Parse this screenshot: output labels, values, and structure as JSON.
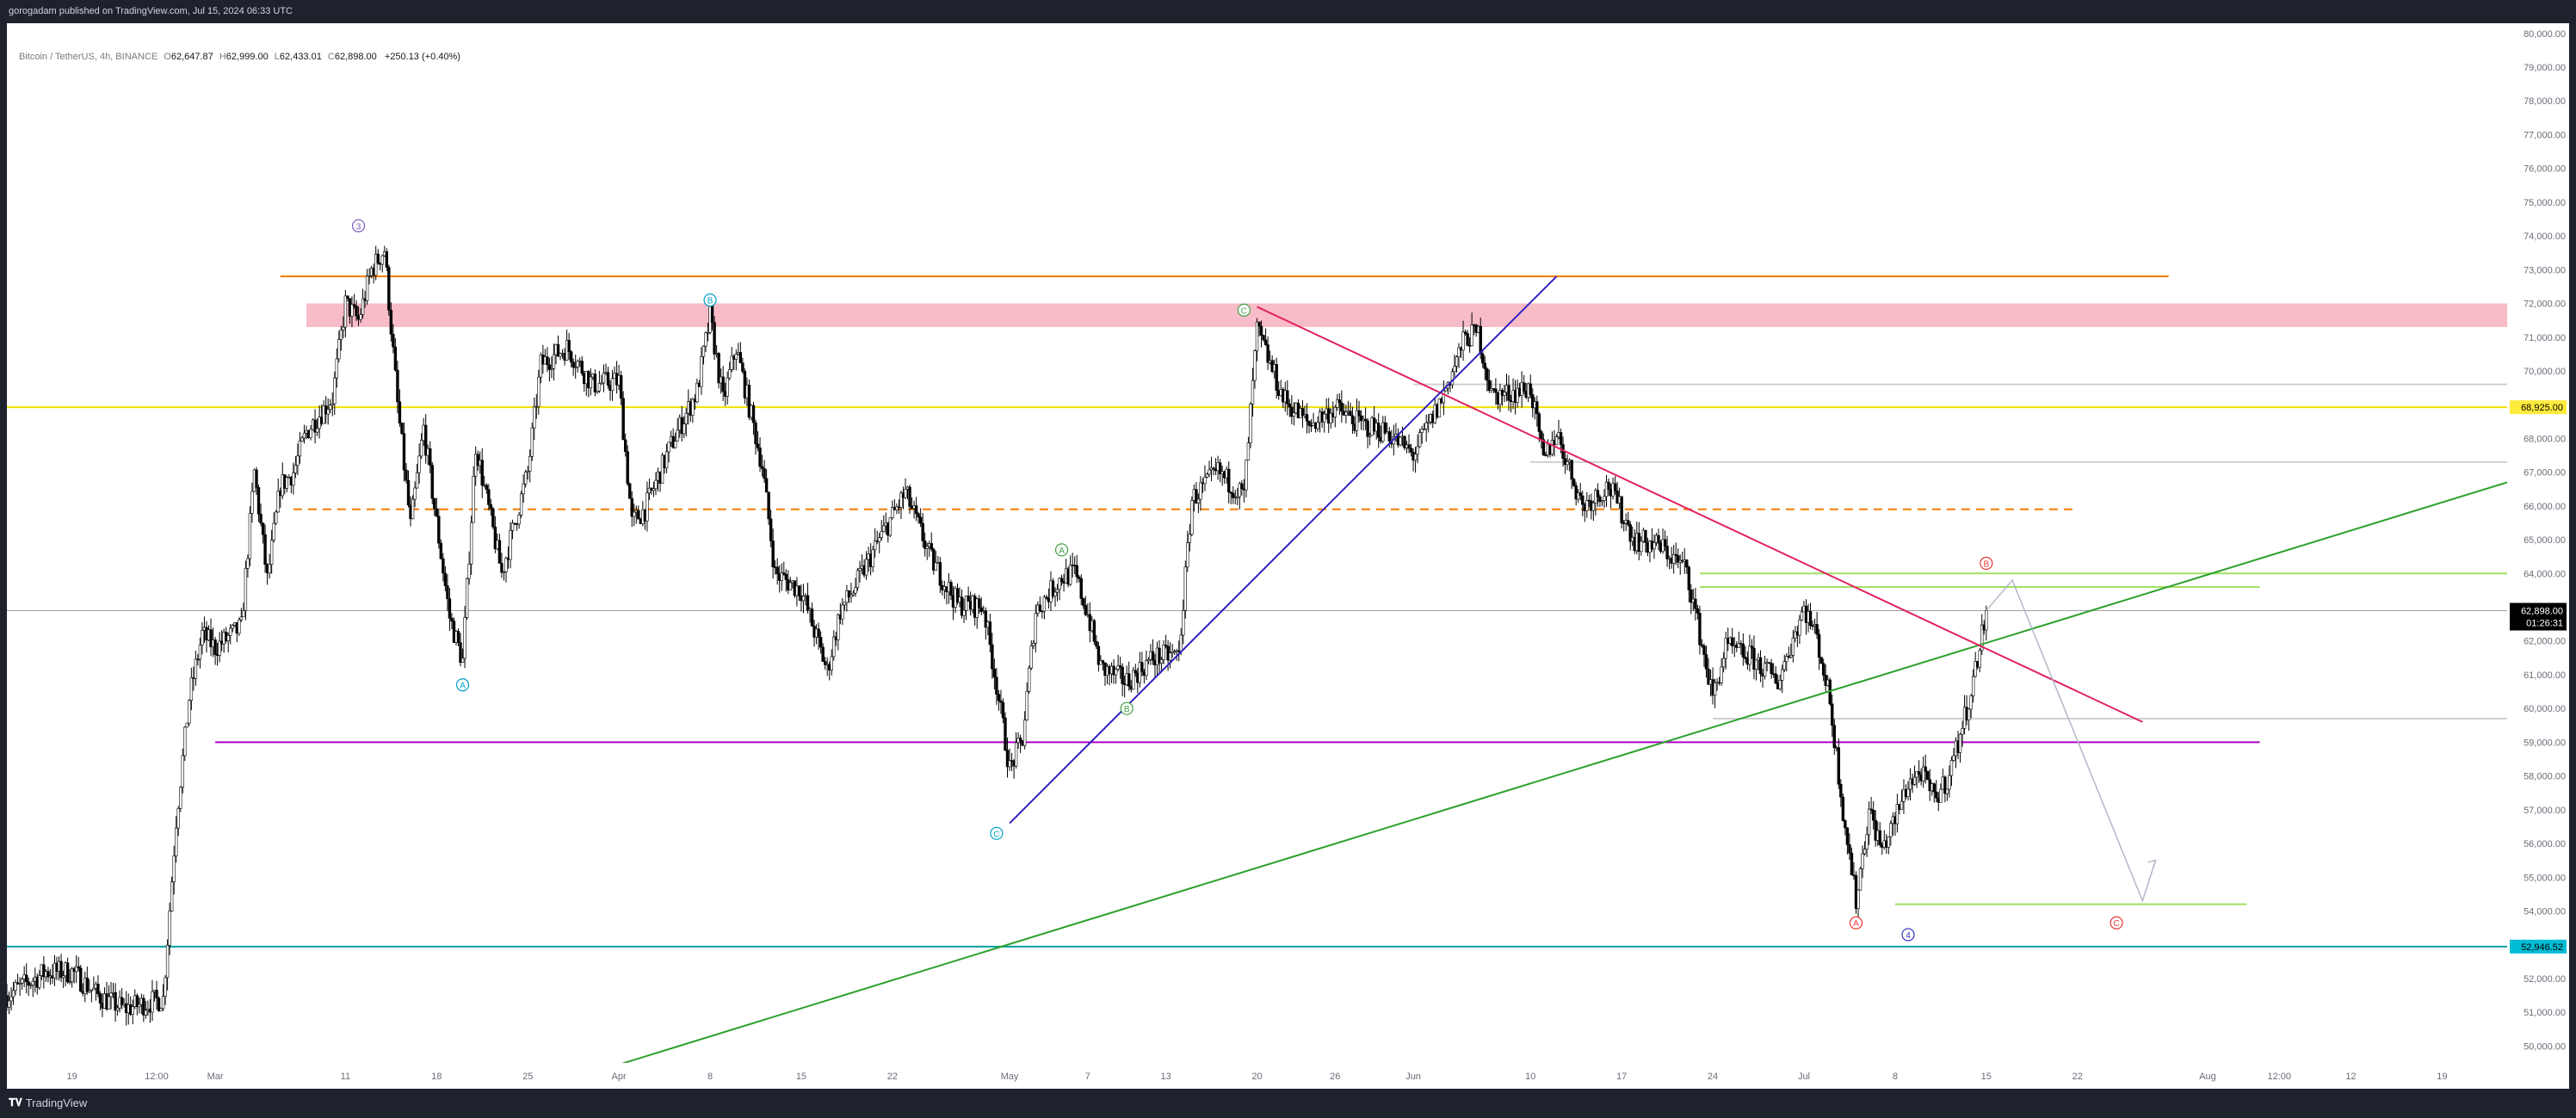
{
  "header": {
    "published_text": "gorogadam published on TradingView.com, Jul 15, 2024 06:33 UTC"
  },
  "footer": {
    "logo_text": "TradingView"
  },
  "legend": {
    "symbol": "Bitcoin / TetherUS, 4h, BINANCE",
    "open_label": "O",
    "open": "62,647.87",
    "high_label": "H",
    "high": "62,999.00",
    "low_label": "L",
    "low": "62,433.01",
    "close_label": "C",
    "close": "62,898.00",
    "change": "+250.13 (+0.40%)"
  },
  "colors": {
    "up": "#ffffff",
    "down": "#000000",
    "orange": "#f57c00",
    "pink_zone": "#f8bbc8",
    "yellow": "#f0e000",
    "purple": "#b000c8",
    "teal": "#00a0a0",
    "green": "#2ca02c",
    "lime": "#a0e060",
    "crimson": "#e0245e",
    "navy": "#3020c0",
    "price_tag": "#000000",
    "teal_tag": "#00bcd4",
    "yellow_tag": "#ffeb3b"
  },
  "chart_data": {
    "type": "candlestick",
    "symbol": "BTCUSDT",
    "timeframe": "4h",
    "exchange": "BINANCE",
    "ylim": [
      49500,
      80300
    ],
    "y_ticks": [
      "80,000.00",
      "79,000.00",
      "78,000.00",
      "77,000.00",
      "76,000.00",
      "75,000.00",
      "74,000.00",
      "73,000.00",
      "72,000.00",
      "71,000.00",
      "70,000.00",
      "69,000.00",
      "68,000.00",
      "67,000.00",
      "66,000.00",
      "65,000.00",
      "64,000.00",
      "63,000.00",
      "62,000.00",
      "61,000.00",
      "60,000.00",
      "59,000.00",
      "58,000.00",
      "57,000.00",
      "56,000.00",
      "55,000.00",
      "54,000.00",
      "53,000.00",
      "52,000.00",
      "51,000.00",
      "50,000.00"
    ],
    "x_ticks": [
      {
        "label": "19",
        "date": "2024-02-19"
      },
      {
        "label": "12:00",
        "date": "2024-02-25T12:00"
      },
      {
        "label": "Mar",
        "date": "2024-03-01"
      },
      {
        "label": "11",
        "date": "2024-03-11"
      },
      {
        "label": "18",
        "date": "2024-03-18"
      },
      {
        "label": "25",
        "date": "2024-03-25"
      },
      {
        "label": "Apr",
        "date": "2024-04-01"
      },
      {
        "label": "8",
        "date": "2024-04-08"
      },
      {
        "label": "15",
        "date": "2024-04-15"
      },
      {
        "label": "22",
        "date": "2024-04-22"
      },
      {
        "label": "May",
        "date": "2024-05-01"
      },
      {
        "label": "7",
        "date": "2024-05-07"
      },
      {
        "label": "13",
        "date": "2024-05-13"
      },
      {
        "label": "20",
        "date": "2024-05-20"
      },
      {
        "label": "26",
        "date": "2024-05-26"
      },
      {
        "label": "Jun",
        "date": "2024-06-01"
      },
      {
        "label": "10",
        "date": "2024-06-10"
      },
      {
        "label": "17",
        "date": "2024-06-17"
      },
      {
        "label": "24",
        "date": "2024-06-24"
      },
      {
        "label": "Jul",
        "date": "2024-07-01"
      },
      {
        "label": "8",
        "date": "2024-07-08"
      },
      {
        "label": "15",
        "date": "2024-07-15"
      },
      {
        "label": "22",
        "date": "2024-07-22"
      },
      {
        "label": "Aug",
        "date": "2024-08-01"
      },
      {
        "label": "12:00",
        "date": "2024-08-06T12:00"
      },
      {
        "label": "12",
        "date": "2024-08-12"
      },
      {
        "label": "19",
        "date": "2024-08-19"
      }
    ],
    "price_path": [
      [
        "2024-02-14",
        51500
      ],
      [
        "2024-02-17",
        52200
      ],
      [
        "2024-02-19",
        52200
      ],
      [
        "2024-02-21",
        51500
      ],
      [
        "2024-02-23",
        51100
      ],
      [
        "2024-02-26",
        51400
      ],
      [
        "2024-02-27",
        56700
      ],
      [
        "2024-02-28",
        60300
      ],
      [
        "2024-02-29",
        62200
      ],
      [
        "2024-03-01",
        61800
      ],
      [
        "2024-03-03",
        62400
      ],
      [
        "2024-03-04",
        67000
      ],
      [
        "2024-03-05",
        63800
      ],
      [
        "2024-03-06",
        66600
      ],
      [
        "2024-03-07",
        67000
      ],
      [
        "2024-03-08",
        68200
      ],
      [
        "2024-03-10",
        69200
      ],
      [
        "2024-03-11",
        72000
      ],
      [
        "2024-03-12",
        71500
      ],
      [
        "2024-03-13",
        73000
      ],
      [
        "2024-03-14",
        73600
      ],
      [
        "2024-03-15",
        69000
      ],
      [
        "2024-03-16",
        65400
      ],
      [
        "2024-03-17",
        68300
      ],
      [
        "2024-03-19",
        62700
      ],
      [
        "2024-03-20",
        61400
      ],
      [
        "2024-03-21",
        67800
      ],
      [
        "2024-03-23",
        64000
      ],
      [
        "2024-03-25",
        67000
      ],
      [
        "2024-03-26",
        70200
      ],
      [
        "2024-03-28",
        70700
      ],
      [
        "2024-03-30",
        69600
      ],
      [
        "2024-04-01",
        69700
      ],
      [
        "2024-04-02",
        65500
      ],
      [
        "2024-04-03",
        65900
      ],
      [
        "2024-04-05",
        67800
      ],
      [
        "2024-04-07",
        69400
      ],
      [
        "2024-04-08",
        71600
      ],
      [
        "2024-04-09",
        69100
      ],
      [
        "2024-04-10",
        70700
      ],
      [
        "2024-04-12",
        67200
      ],
      [
        "2024-04-13",
        64000
      ],
      [
        "2024-04-15",
        63500
      ],
      [
        "2024-04-17",
        61100
      ],
      [
        "2024-04-18",
        62900
      ],
      [
        "2024-04-19",
        63500
      ],
      [
        "2024-04-21",
        65000
      ],
      [
        "2024-04-23",
        66400
      ],
      [
        "2024-04-25",
        64400
      ],
      [
        "2024-04-27",
        63100
      ],
      [
        "2024-04-29",
        63000
      ],
      [
        "2024-04-30",
        60700
      ],
      [
        "2024-05-01",
        58200
      ],
      [
        "2024-05-02",
        59100
      ],
      [
        "2024-05-03",
        62900
      ],
      [
        "2024-05-05",
        63900
      ],
      [
        "2024-05-06",
        64000
      ],
      [
        "2024-05-07",
        62800
      ],
      [
        "2024-05-08",
        61200
      ],
      [
        "2024-05-10",
        60800
      ],
      [
        "2024-05-12",
        61500
      ],
      [
        "2024-05-14",
        61600
      ],
      [
        "2024-05-15",
        66200
      ],
      [
        "2024-05-17",
        67000
      ],
      [
        "2024-05-19",
        66300
      ],
      [
        "2024-05-20",
        71200
      ],
      [
        "2024-05-21",
        70200
      ],
      [
        "2024-05-22",
        69200
      ],
      [
        "2024-05-24",
        68400
      ],
      [
        "2024-05-26",
        68900
      ],
      [
        "2024-05-28",
        68400
      ],
      [
        "2024-05-30",
        68200
      ],
      [
        "2024-06-01",
        67500
      ],
      [
        "2024-06-03",
        69000
      ],
      [
        "2024-06-05",
        71000
      ],
      [
        "2024-06-06",
        71100
      ],
      [
        "2024-06-07",
        69300
      ],
      [
        "2024-06-08",
        69300
      ],
      [
        "2024-06-10",
        69500
      ],
      [
        "2024-06-11",
        67300
      ],
      [
        "2024-06-12",
        68200
      ],
      [
        "2024-06-14",
        66000
      ],
      [
        "2024-06-16",
        66600
      ],
      [
        "2024-06-18",
        65000
      ],
      [
        "2024-06-20",
        64800
      ],
      [
        "2024-06-22",
        64100
      ],
      [
        "2024-06-24",
        60300
      ],
      [
        "2024-06-25",
        61800
      ],
      [
        "2024-06-27",
        61500
      ],
      [
        "2024-06-29",
        60800
      ],
      [
        "2024-07-01",
        63000
      ],
      [
        "2024-07-02",
        62100
      ],
      [
        "2024-07-03",
        60200
      ],
      [
        "2024-07-04",
        57000
      ],
      [
        "2024-07-05",
        54300
      ],
      [
        "2024-07-06",
        57000
      ],
      [
        "2024-07-07",
        55800
      ],
      [
        "2024-07-08",
        56700
      ],
      [
        "2024-07-09",
        57800
      ],
      [
        "2024-07-10",
        58100
      ],
      [
        "2024-07-11",
        57300
      ],
      [
        "2024-07-12",
        57900
      ],
      [
        "2024-07-13",
        59200
      ],
      [
        "2024-07-14",
        60800
      ],
      [
        "2024-07-15",
        62898
      ]
    ],
    "last_price": 62898.0,
    "last_price_label": "62,898.00",
    "countdown_label": "01:26:31",
    "horizontal_lines": [
      {
        "name": "orange-top-line",
        "y": 72800,
        "from": "2024-03-06",
        "to": "2024-07-29",
        "style": "solid",
        "color": "#f57c00"
      },
      {
        "name": "orange-dashed-line",
        "y": 65900,
        "from": "2024-03-07",
        "to": "2024-07-22",
        "style": "dashed",
        "color": "#f57c00"
      },
      {
        "name": "yellow-line",
        "y": 68925,
        "from": "2024-02-14",
        "to": "2024-08-24",
        "style": "solid",
        "color": "#f0e000"
      },
      {
        "name": "purple-support-line",
        "y": 59000,
        "from": "2024-03-01",
        "to": "2024-08-05",
        "style": "solid",
        "color": "#b000c8"
      },
      {
        "name": "teal-support-line",
        "y": 52946.52,
        "from": "2024-02-14",
        "to": "2024-08-24",
        "style": "solid",
        "color": "#00a0a0"
      },
      {
        "name": "lime-line-upper",
        "y": 64000,
        "from": "2024-06-23",
        "to": "2024-08-24",
        "style": "solid",
        "color": "#a0e060"
      },
      {
        "name": "lime-line-lower",
        "y": 63600,
        "from": "2024-06-23",
        "to": "2024-08-05",
        "style": "solid",
        "color": "#a0e060"
      },
      {
        "name": "lime-bottom-line",
        "y": 54200,
        "from": "2024-07-08",
        "to": "2024-08-04",
        "style": "solid",
        "color": "#a0e060"
      },
      {
        "name": "grey-line-upper",
        "y": 69600,
        "from": "2024-06-01",
        "to": "2024-08-24",
        "style": "solid",
        "color": "#d0d0d0"
      },
      {
        "name": "grey-line-mid",
        "y": 67300,
        "from": "2024-06-10",
        "to": "2024-08-24",
        "style": "solid",
        "color": "#d0d0d0"
      },
      {
        "name": "grey-line-lower",
        "y": 59700,
        "from": "2024-06-24",
        "to": "2024-08-24",
        "style": "solid",
        "color": "#d0d0d0"
      },
      {
        "name": "last-price-line",
        "y": 62898,
        "from": "2024-02-14",
        "to": "2024-08-24",
        "style": "solid",
        "color": "#a0a0a0"
      }
    ],
    "zones": [
      {
        "name": "pink-resistance-zone",
        "y1": 71300,
        "y2": 72000,
        "from": "2024-03-08",
        "to": "2024-08-24",
        "color": "#f8bbc8"
      }
    ],
    "trend_lines": [
      {
        "name": "green-rising-trendline",
        "from": [
          "2024-03-24",
          48500
        ],
        "to": [
          "2024-08-24",
          66700
        ],
        "color": "#2ca02c"
      },
      {
        "name": "crimson-falling-trendline",
        "from": [
          "2024-05-20",
          71900
        ],
        "to": [
          "2024-07-27",
          59600
        ],
        "color": "#e0245e"
      },
      {
        "name": "navy-rising-trendline",
        "from": [
          "2024-05-01",
          56600
        ],
        "to": [
          "2024-06-12",
          72800
        ],
        "color": "#3020c0"
      }
    ],
    "projection": [
      [
        "2024-07-15",
        62900
      ],
      [
        "2024-07-17",
        63800
      ],
      [
        "2024-07-27",
        54300
      ],
      [
        "2024-07-28",
        55500
      ]
    ],
    "wave_labels": [
      {
        "text": "3",
        "x": "2024-03-12",
        "y": 74300,
        "color": "#7e57c2"
      },
      {
        "text": "B",
        "x": "2024-04-08",
        "y": 72100,
        "color": "#00a0c8"
      },
      {
        "text": "A",
        "x": "2024-03-20",
        "y": 60700,
        "color": "#00a0c8"
      },
      {
        "text": "C",
        "x": "2024-04-30",
        "y": 56300,
        "color": "#00a0c8"
      },
      {
        "text": "C",
        "x": "2024-05-19",
        "y": 71800,
        "color": "#43a047"
      },
      {
        "text": "A",
        "x": "2024-05-05",
        "y": 64700,
        "color": "#43a047"
      },
      {
        "text": "B",
        "x": "2024-05-10",
        "y": 60000,
        "color": "#43a047"
      },
      {
        "text": "B",
        "x": "2024-07-15",
        "y": 64300,
        "color": "#e53935"
      },
      {
        "text": "A",
        "x": "2024-07-05",
        "y": 53650,
        "color": "#e53935"
      },
      {
        "text": "C",
        "x": "2024-07-25",
        "y": 53650,
        "color": "#e53935"
      },
      {
        "text": "4",
        "x": "2024-07-09",
        "y": 53300,
        "color": "#3030c0"
      }
    ],
    "axis_tags": [
      {
        "name": "yellow-price-tag",
        "text": "68,925.00",
        "y": 68925,
        "bg": "#ffeb3b",
        "fg": "#000000"
      },
      {
        "name": "teal-price-tag",
        "text": "52,946.52",
        "y": 52946.52,
        "bg": "#00bcd4",
        "fg": "#000000"
      }
    ],
    "x_range": [
      "2024-02-14",
      "2024-08-24"
    ],
    "grid": false,
    "legend_position": "top-left"
  }
}
